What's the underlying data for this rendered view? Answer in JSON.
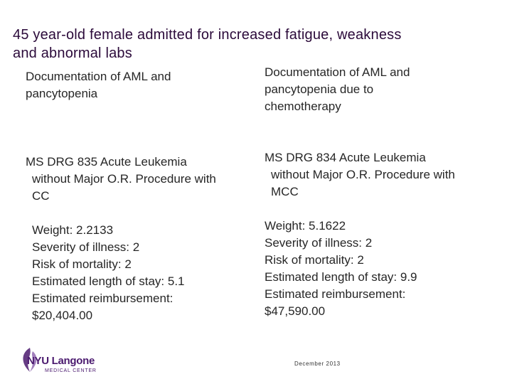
{
  "slide": {
    "title_line1": "45 year-old female admitted for increased fatigue, weakness",
    "title_line2": "and abnormal labs",
    "left": {
      "documentation": [
        "Documentation of AML and",
        "pancytopenia"
      ],
      "drg": [
        "MS DRG 835 Acute Leukemia",
        "without Major O.R. Procedure with",
        "CC"
      ],
      "stats": [
        "Weight: 2.2133",
        "Severity of illness: 2",
        "Risk of mortality: 2",
        "Estimated length of stay: 5.1",
        "Estimated reimbursement:",
        "$20,404.00"
      ]
    },
    "right": {
      "documentation": [
        "Documentation of AML and",
        "pancytopenia due to",
        "chemotherapy"
      ],
      "drg": [
        "MS DRG 834 Acute Leukemia",
        "without Major O.R. Procedure with",
        "MCC"
      ],
      "stats": [
        "Weight: 5.1622",
        "Severity of illness: 2",
        "Risk of mortality: 2",
        "Estimated length of stay: 9.9",
        "Estimated reimbursement:",
        "$47,590.00"
      ]
    },
    "footer": {
      "logo_text": "NYU Langone",
      "logo_subtext": "MEDICAL CENTER",
      "logo_icon": "nyu-torch-icon",
      "date": "December 2013"
    },
    "colors": {
      "title": "#2b0a3a",
      "body": "#262626",
      "brand": "#4b1a6f"
    }
  }
}
